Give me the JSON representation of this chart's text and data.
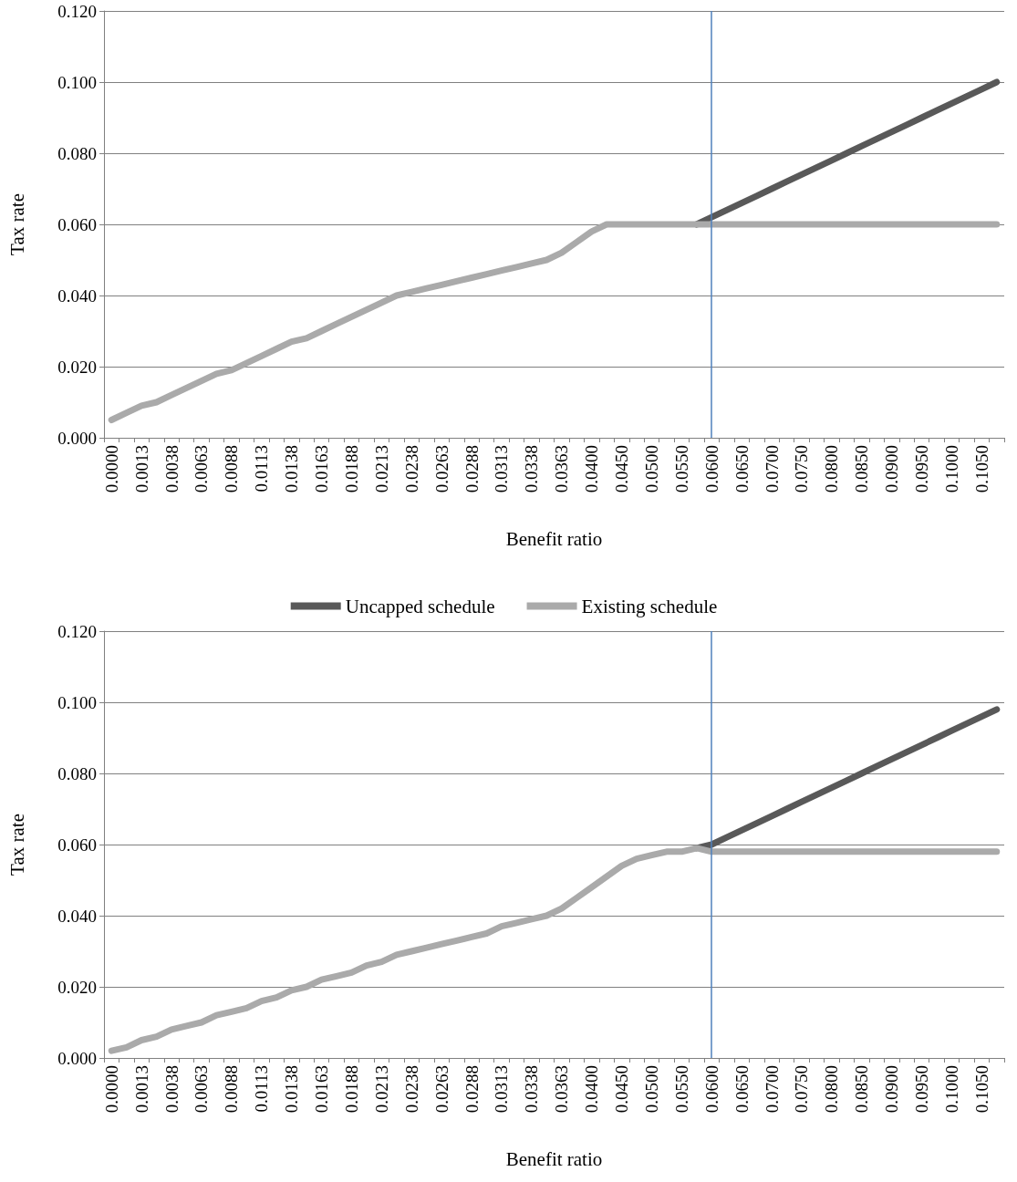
{
  "chart_data": [
    {
      "type": "line",
      "xlabel": "Benefit ratio",
      "ylabel": "Tax rate",
      "categories": [
        "0.0000",
        null,
        "0.0013",
        null,
        "0.0038",
        null,
        "0.0063",
        null,
        "0.0088",
        null,
        "0.0113",
        null,
        "0.0138",
        null,
        "0.0163",
        null,
        "0.0188",
        null,
        "0.0213",
        null,
        "0.0238",
        null,
        "0.0263",
        null,
        "0.0288",
        null,
        "0.0313",
        null,
        "0.0338",
        null,
        "0.0363",
        null,
        "0.0400",
        null,
        "0.0450",
        null,
        "0.0500",
        null,
        "0.0550",
        null,
        "0.0600",
        null,
        "0.0650",
        null,
        "0.0700",
        null,
        "0.0750",
        null,
        "0.0800",
        null,
        "0.0850",
        null,
        "0.0900",
        null,
        "0.0950",
        null,
        "0.1000",
        null,
        "0.1050",
        null
      ],
      "series": [
        {
          "name": "Uncapped schedule",
          "color": "#595959",
          "values": [
            null,
            null,
            null,
            null,
            null,
            null,
            null,
            null,
            null,
            null,
            null,
            null,
            null,
            null,
            null,
            null,
            null,
            null,
            null,
            null,
            null,
            null,
            null,
            null,
            null,
            null,
            null,
            null,
            null,
            null,
            null,
            null,
            null,
            null,
            null,
            null,
            null,
            null,
            null,
            0.06,
            0.062,
            0.064,
            0.066,
            0.068,
            0.07,
            0.072,
            0.074,
            0.076,
            0.078,
            0.08,
            0.082,
            0.084,
            0.086,
            0.088,
            0.09,
            0.092,
            0.094,
            0.096,
            0.098,
            0.1
          ]
        },
        {
          "name": "Existing schedule",
          "color": "#aaaaaa",
          "values": [
            0.005,
            0.007,
            0.009,
            0.01,
            0.012,
            0.014,
            0.016,
            0.018,
            0.019,
            0.021,
            0.023,
            0.025,
            0.027,
            0.028,
            0.03,
            0.032,
            0.034,
            0.036,
            0.038,
            0.04,
            0.041,
            0.042,
            0.043,
            0.044,
            0.045,
            0.046,
            0.047,
            0.048,
            0.049,
            0.05,
            0.052,
            0.055,
            0.058,
            0.06,
            0.06,
            0.06,
            0.06,
            0.06,
            0.06,
            0.06,
            0.06,
            0.06,
            0.06,
            0.06,
            0.06,
            0.06,
            0.06,
            0.06,
            0.06,
            0.06,
            0.06,
            0.06,
            0.06,
            0.06,
            0.06,
            0.06,
            0.06,
            0.06,
            0.06,
            0.06
          ]
        }
      ],
      "ylim": [
        0,
        0.12
      ],
      "yticks": [
        {
          "value": 0,
          "label": "0.000"
        },
        {
          "value": 0.02,
          "label": "0.020"
        },
        {
          "value": 0.04,
          "label": "0.040"
        },
        {
          "value": 0.06,
          "label": "0.060"
        },
        {
          "value": 0.08,
          "label": "0.080"
        },
        {
          "value": 0.1,
          "label": "0.100"
        },
        {
          "value": 0.12,
          "label": "0.120"
        }
      ],
      "grid": "y",
      "legend": "bottom",
      "ref_lines": [
        {
          "axis": "x",
          "value": "0.0600",
          "color": "#4f81bd"
        }
      ]
    },
    {
      "type": "line",
      "xlabel": "Benefit ratio",
      "ylabel": "Tax rate",
      "categories": [
        "0.0000",
        null,
        "0.0013",
        null,
        "0.0038",
        null,
        "0.0063",
        null,
        "0.0088",
        null,
        "0.0113",
        null,
        "0.0138",
        null,
        "0.0163",
        null,
        "0.0188",
        null,
        "0.0213",
        null,
        "0.0238",
        null,
        "0.0263",
        null,
        "0.0288",
        null,
        "0.0313",
        null,
        "0.0338",
        null,
        "0.0363",
        null,
        "0.0400",
        null,
        "0.0450",
        null,
        "0.0500",
        null,
        "0.0550",
        null,
        "0.0600",
        null,
        "0.0650",
        null,
        "0.0700",
        null,
        "0.0750",
        null,
        "0.0800",
        null,
        "0.0850",
        null,
        "0.0900",
        null,
        "0.0950",
        null,
        "0.1000",
        null,
        "0.1050",
        null
      ],
      "series": [
        {
          "color": "#595959",
          "values": [
            null,
            null,
            null,
            null,
            null,
            null,
            null,
            null,
            null,
            null,
            null,
            null,
            null,
            null,
            null,
            null,
            null,
            null,
            null,
            null,
            null,
            null,
            null,
            null,
            null,
            null,
            null,
            null,
            null,
            null,
            null,
            null,
            null,
            null,
            null,
            null,
            null,
            null,
            null,
            0.059,
            0.06,
            0.062,
            0.064,
            0.066,
            0.068,
            0.07,
            0.072,
            0.074,
            0.076,
            0.078,
            0.08,
            0.082,
            0.084,
            0.086,
            0.088,
            0.09,
            0.092,
            0.094,
            0.096,
            0.098
          ]
        },
        {
          "color": "#aaaaaa",
          "values": [
            0.002,
            0.003,
            0.005,
            0.006,
            0.008,
            0.009,
            0.01,
            0.012,
            0.013,
            0.014,
            0.016,
            0.017,
            0.019,
            0.02,
            0.022,
            0.023,
            0.024,
            0.026,
            0.027,
            0.029,
            0.03,
            0.031,
            0.032,
            0.033,
            0.034,
            0.035,
            0.037,
            0.038,
            0.039,
            0.04,
            0.042,
            0.045,
            0.048,
            0.051,
            0.054,
            0.056,
            0.057,
            0.058,
            0.058,
            0.059,
            0.058,
            0.058,
            0.058,
            0.058,
            0.058,
            0.058,
            0.058,
            0.058,
            0.058,
            0.058,
            0.058,
            0.058,
            0.058,
            0.058,
            0.058,
            0.058,
            0.058,
            0.058,
            0.058,
            0.058
          ]
        }
      ],
      "ylim": [
        0,
        0.12
      ],
      "yticks": [
        {
          "value": 0,
          "label": "0.000"
        },
        {
          "value": 0.02,
          "label": "0.020"
        },
        {
          "value": 0.04,
          "label": "0.040"
        },
        {
          "value": 0.06,
          "label": "0.060"
        },
        {
          "value": 0.08,
          "label": "0.080"
        },
        {
          "value": 0.1,
          "label": "0.100"
        },
        {
          "value": 0.12,
          "label": "0.120"
        }
      ],
      "grid": "y",
      "ref_lines": [
        {
          "axis": "x",
          "value": "0.0600",
          "color": "#4f81bd"
        }
      ]
    }
  ]
}
